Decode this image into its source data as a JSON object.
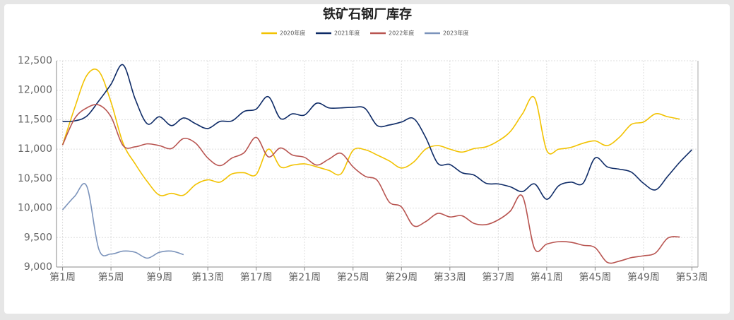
{
  "chart_data": {
    "type": "line",
    "title": "铁矿石钢厂库存",
    "categories": [
      "第1周",
      null,
      null,
      null,
      "第5周",
      null,
      null,
      null,
      "第9周",
      null,
      null,
      null,
      "第13周",
      null,
      null,
      null,
      "第17周",
      null,
      null,
      null,
      "第21周",
      null,
      null,
      null,
      "第25周",
      null,
      null,
      null,
      "第29周",
      null,
      null,
      null,
      "第33周",
      null,
      null,
      null,
      "第37周",
      null,
      null,
      null,
      "第41周",
      null,
      null,
      null,
      "第45周",
      null,
      null,
      null,
      "第49周",
      null,
      null,
      null,
      "第53周"
    ],
    "series": [
      {
        "name": "2020年度",
        "color": "#f2c200",
        "values": [
          11070,
          11700,
          12250,
          12320,
          11800,
          11100,
          10750,
          10450,
          10220,
          10250,
          10220,
          10400,
          10480,
          10440,
          10580,
          10600,
          10570,
          11000,
          10700,
          10730,
          10750,
          10700,
          10640,
          10580,
          10980,
          10990,
          10900,
          10800,
          10680,
          10780,
          11000,
          11060,
          11000,
          10950,
          11010,
          11040,
          11140,
          11300,
          11600,
          11870,
          10980,
          11000,
          11030,
          11100,
          11140,
          11060,
          11200,
          11420,
          11460,
          11600,
          11550,
          11510,
          null
        ]
      },
      {
        "name": "2021年度",
        "color": "#0d2a66",
        "values": [
          11470,
          11480,
          11560,
          11820,
          12100,
          12430,
          11850,
          11430,
          11550,
          11400,
          11530,
          11430,
          11350,
          11470,
          11480,
          11640,
          11680,
          11890,
          11520,
          11600,
          11580,
          11780,
          11700,
          11700,
          11710,
          11690,
          11400,
          11410,
          11460,
          11520,
          11200,
          10760,
          10740,
          10600,
          10560,
          10420,
          10410,
          10360,
          10280,
          10410,
          10150,
          10380,
          10440,
          10420,
          10850,
          10700,
          10660,
          10610,
          10420,
          10310,
          10540,
          10780,
          10990
        ]
      },
      {
        "name": "2022年度",
        "color": "#b85450",
        "values": [
          11070,
          11520,
          11700,
          11750,
          11550,
          11060,
          11040,
          11090,
          11060,
          11010,
          11180,
          11100,
          10850,
          10720,
          10850,
          10940,
          11200,
          10870,
          11020,
          10900,
          10860,
          10730,
          10830,
          10930,
          10700,
          10540,
          10470,
          10100,
          10020,
          9700,
          9770,
          9910,
          9850,
          9870,
          9740,
          9720,
          9800,
          9950,
          10200,
          9310,
          9390,
          9430,
          9420,
          9370,
          9330,
          9080,
          9100,
          9160,
          9190,
          9240,
          9490,
          9510,
          null
        ]
      },
      {
        "name": "2023年度",
        "color": "#7b93bb",
        "values": [
          9970,
          10200,
          10370,
          9300,
          9220,
          9270,
          9250,
          9150,
          9250,
          9270,
          9210,
          null,
          null,
          null,
          null,
          null,
          null,
          null,
          null,
          null,
          null,
          null,
          null,
          null,
          null,
          null,
          null,
          null,
          null,
          null,
          null,
          null,
          null,
          null,
          null,
          null,
          null,
          null,
          null,
          null,
          null,
          null,
          null,
          null,
          null,
          null,
          null,
          null,
          null,
          null,
          null,
          null,
          null
        ]
      }
    ],
    "ylim": [
      9000,
      12500
    ],
    "yticks": [
      {
        "value": 9000,
        "label": "9,000"
      },
      {
        "value": 9500,
        "label": "9,500"
      },
      {
        "value": 10000,
        "label": "10,000"
      },
      {
        "value": 10500,
        "label": "10,500"
      },
      {
        "value": 11000,
        "label": "11,000"
      },
      {
        "value": 11500,
        "label": "11,500"
      },
      {
        "value": 12000,
        "label": "12,000"
      },
      {
        "value": 12500,
        "label": "12,500"
      }
    ],
    "grid": true,
    "legend": "top"
  }
}
